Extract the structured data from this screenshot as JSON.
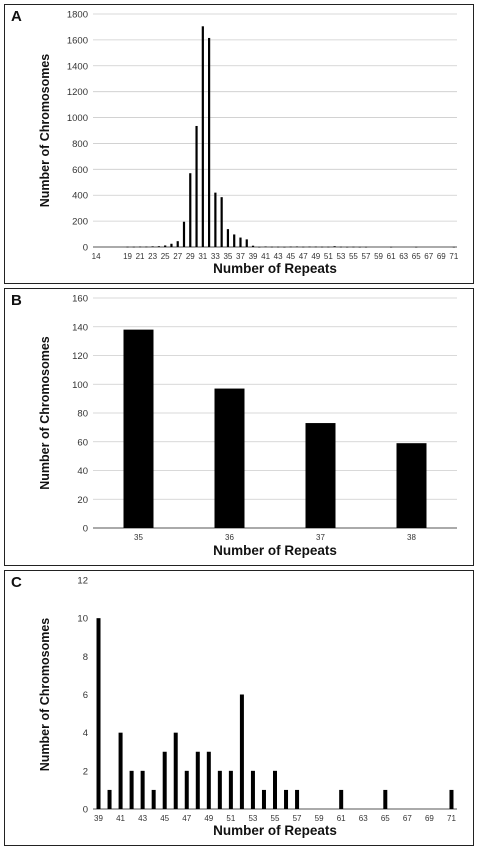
{
  "chart_data": [
    {
      "panel": "A",
      "type": "bar",
      "xlabel": "Number of Repeats",
      "ylabel": "Number of Chromosomes",
      "ylim": [
        0,
        1800
      ],
      "yticks": [
        0,
        200,
        400,
        600,
        800,
        1000,
        1200,
        1400,
        1600,
        1800
      ],
      "xrange": [
        14,
        71
      ],
      "xticks": [
        14,
        19,
        21,
        23,
        25,
        27,
        29,
        31,
        33,
        35,
        37,
        39,
        41,
        43,
        45,
        47,
        49,
        51,
        53,
        55,
        57,
        59,
        61,
        63,
        65,
        67,
        69,
        71
      ],
      "grid": true,
      "x": [
        19,
        20,
        21,
        22,
        23,
        24,
        25,
        26,
        27,
        28,
        29,
        30,
        31,
        32,
        33,
        34,
        35,
        36,
        37,
        38,
        39,
        40,
        41,
        42,
        43,
        44,
        45,
        46,
        47,
        48,
        49,
        50,
        51,
        52,
        53,
        54,
        55,
        56,
        57,
        58,
        59,
        60,
        61,
        62,
        63,
        64,
        65,
        66,
        67,
        68,
        69,
        70,
        71
      ],
      "values": [
        2,
        2,
        3,
        3,
        5,
        6,
        12,
        25,
        45,
        195,
        570,
        935,
        1705,
        1615,
        420,
        385,
        138,
        97,
        73,
        59,
        10,
        1,
        4,
        2,
        2,
        1,
        3,
        4,
        2,
        3,
        3,
        2,
        2,
        6,
        2,
        1,
        2,
        1,
        1,
        0,
        0,
        0,
        1,
        0,
        0,
        0,
        1,
        0,
        0,
        0,
        0,
        0,
        1
      ]
    },
    {
      "panel": "B",
      "type": "bar",
      "xlabel": "Number of Repeats",
      "ylabel": "Number of Chromosomes",
      "ylim": [
        0,
        160
      ],
      "yticks": [
        0,
        20,
        40,
        60,
        80,
        100,
        120,
        140,
        160
      ],
      "grid": true,
      "categories": [
        "35",
        "36",
        "37",
        "38"
      ],
      "values": [
        138,
        97,
        73,
        59
      ]
    },
    {
      "panel": "C",
      "type": "bar",
      "xlabel": "Number of Repeats",
      "ylabel": "Number of Chromosomes",
      "ylim": [
        0,
        12
      ],
      "yticks": [
        0,
        2,
        4,
        6,
        8,
        10,
        12
      ],
      "xrange": [
        39,
        71
      ],
      "xticks": [
        39,
        41,
        43,
        45,
        47,
        49,
        51,
        53,
        55,
        57,
        59,
        61,
        63,
        65,
        67,
        69,
        71
      ],
      "grid": false,
      "x": [
        39,
        40,
        41,
        42,
        43,
        44,
        45,
        46,
        47,
        48,
        49,
        50,
        51,
        52,
        53,
        54,
        55,
        56,
        57,
        58,
        59,
        60,
        61,
        62,
        63,
        64,
        65,
        66,
        67,
        68,
        69,
        70,
        71
      ],
      "values": [
        10,
        1,
        4,
        2,
        2,
        1,
        3,
        4,
        2,
        3,
        3,
        2,
        2,
        6,
        2,
        1,
        2,
        1,
        1,
        0,
        0,
        0,
        1,
        0,
        0,
        0,
        1,
        0,
        0,
        0,
        0,
        0,
        1
      ]
    }
  ],
  "colors": {
    "bar": "#000000",
    "grid": "#cccccc",
    "axis": "#555555"
  }
}
